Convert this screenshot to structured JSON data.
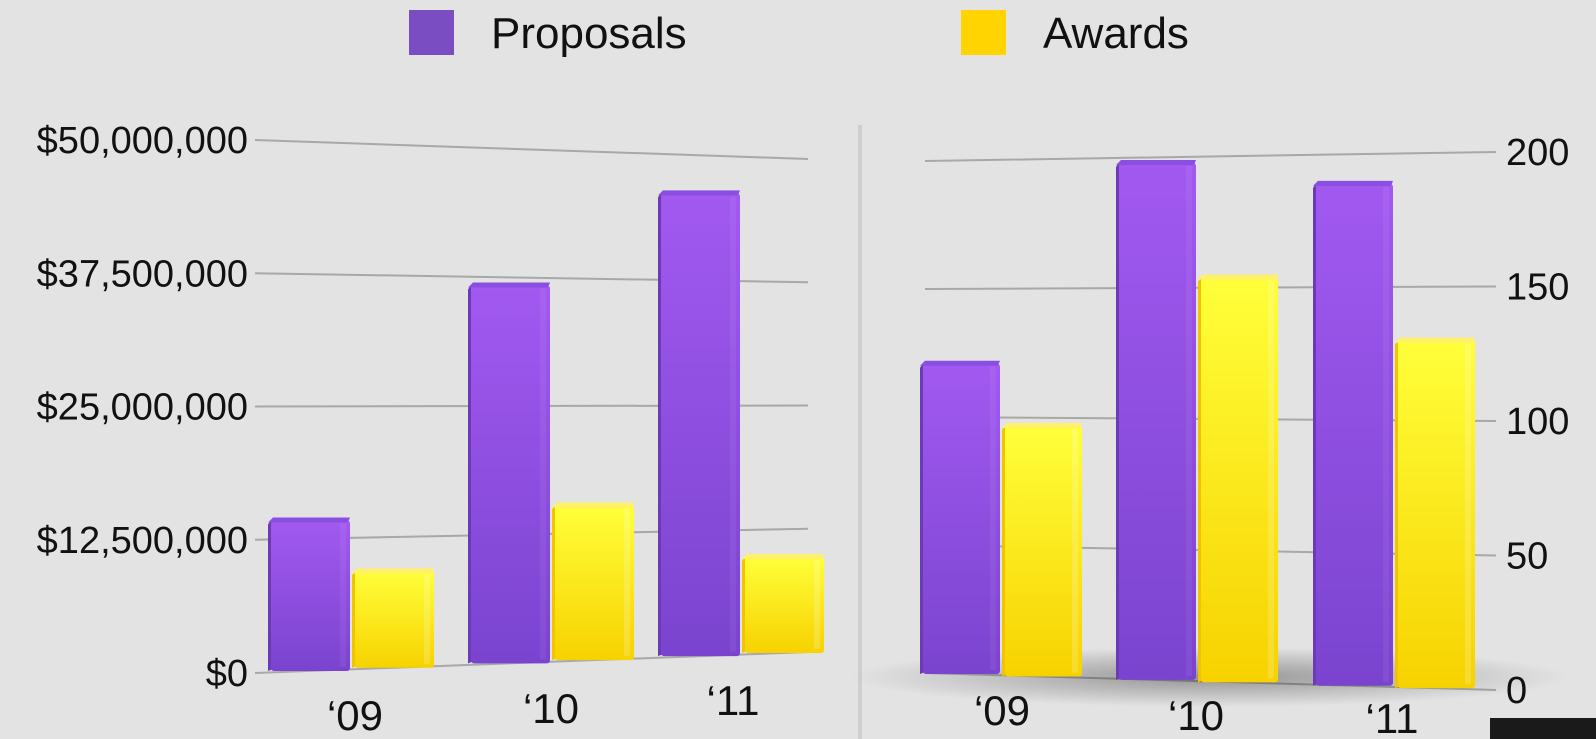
{
  "legend": [
    {
      "name": "Proposals",
      "color": "#7b4dc2"
    },
    {
      "name": "Awards",
      "color": "#ffd400"
    }
  ],
  "colors": {
    "proposals_light": "#a259f0",
    "proposals_dark": "#6a3ab8",
    "awards_light": "#ffff3a",
    "awards_dark": "#f2c400",
    "grid": "#a8a8a8",
    "background": "#e3e3e3"
  },
  "chart_data": [
    {
      "type": "bar",
      "categories": [
        "‘09",
        "‘10",
        "‘11"
      ],
      "series": [
        {
          "name": "Proposals",
          "values": [
            14500000,
            37000000,
            46500000
          ]
        },
        {
          "name": "Awards",
          "values": [
            9500000,
            15500000,
            10000000
          ]
        }
      ],
      "ylim": [
        0,
        50000000
      ],
      "yticks": [
        0,
        12500000,
        25000000,
        37500000,
        50000000
      ],
      "ytick_labels": [
        "$0",
        "$12,500,000",
        "$25,000,000",
        "$37,500,000",
        "$50,000,000"
      ],
      "axis_side": "left",
      "legend": "top-center",
      "grid": true
    },
    {
      "type": "bar",
      "categories": [
        "‘09",
        "‘10",
        "‘11"
      ],
      "series": [
        {
          "name": "Proposals",
          "values": [
            122,
            199,
            190
          ]
        },
        {
          "name": "Awards",
          "values": [
            98,
            155,
            131
          ]
        }
      ],
      "ylim": [
        0,
        200
      ],
      "yticks": [
        0,
        50,
        100,
        150,
        200
      ],
      "ytick_labels": [
        "0",
        "50",
        "100",
        "150",
        "200"
      ],
      "axis_side": "right",
      "legend": "top-center",
      "grid": true
    }
  ]
}
